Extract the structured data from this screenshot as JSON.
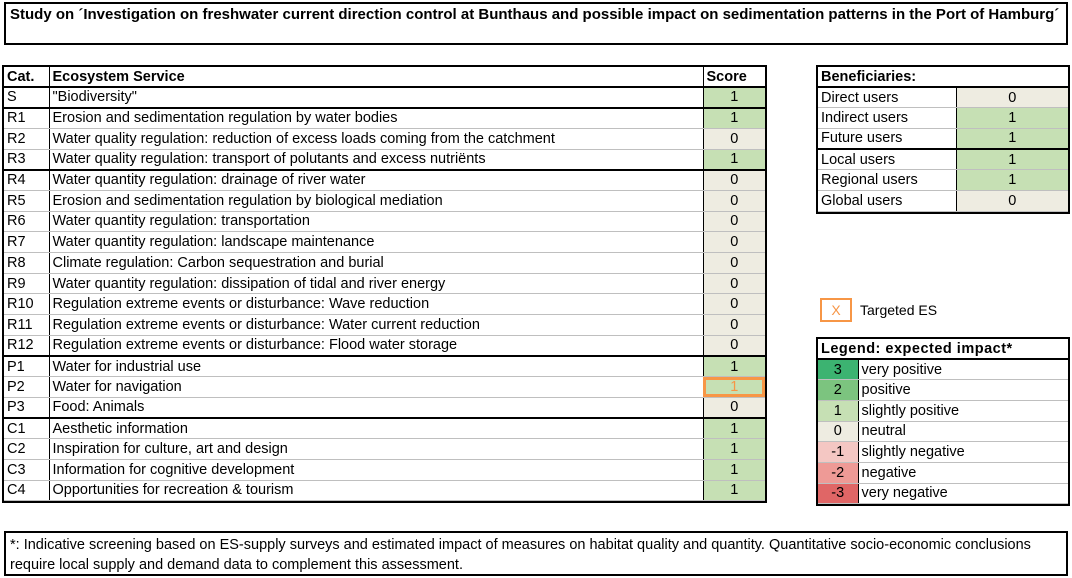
{
  "title": "Study on ´Investigation on freshwater current direction control at Bunthaus and possible impact on sedimentation patterns in the Port of Hamburg´",
  "es_table": {
    "headers": {
      "cat": "Cat.",
      "service": "Ecosystem Service",
      "score": "Score"
    },
    "rows": [
      {
        "cat": "S",
        "service": "\"Biodiversity\"",
        "score": "1"
      },
      {
        "cat": "R1",
        "service": "Erosion and sedimentation regulation by water bodies",
        "score": "1"
      },
      {
        "cat": "R2",
        "service": "Water quality regulation: reduction of excess loads coming from the catchment",
        "score": "0"
      },
      {
        "cat": "R3",
        "service": "Water quality regulation: transport of polutants and excess nutriënts",
        "score": "1"
      },
      {
        "cat": "R4",
        "service": "Water quantity regulation: drainage of river water",
        "score": "0"
      },
      {
        "cat": "R5",
        "service": "Erosion and sedimentation regulation by biological mediation",
        "score": "0"
      },
      {
        "cat": "R6",
        "service": "Water quantity regulation: transportation",
        "score": "0"
      },
      {
        "cat": "R7",
        "service": "Water quantity regulation: landscape maintenance",
        "score": "0"
      },
      {
        "cat": "R8",
        "service": "Climate regulation: Carbon sequestration and burial",
        "score": "0"
      },
      {
        "cat": "R9",
        "service": "Water quantity regulation: dissipation of tidal and river energy",
        "score": "0"
      },
      {
        "cat": "R10",
        "service": "Regulation extreme events or disturbance: Wave reduction",
        "score": "0"
      },
      {
        "cat": "R11",
        "service": "Regulation extreme events or disturbance: Water current reduction",
        "score": "0"
      },
      {
        "cat": "R12",
        "service": "Regulation extreme events or disturbance: Flood water storage",
        "score": "0"
      },
      {
        "cat": "P1",
        "service": "Water for industrial use",
        "score": "1"
      },
      {
        "cat": "P2",
        "service": "Water for navigation",
        "score": "1"
      },
      {
        "cat": "P3",
        "service": "Food: Animals",
        "score": "0"
      },
      {
        "cat": "C1",
        "service": "Aesthetic information",
        "score": "1"
      },
      {
        "cat": "C2",
        "service": "Inspiration for culture, art and design",
        "score": "1"
      },
      {
        "cat": "C3",
        "service": "Information for cognitive development",
        "score": "1"
      },
      {
        "cat": "C4",
        "service": "Opportunities for recreation & tourism",
        "score": "1"
      }
    ]
  },
  "beneficiaries": {
    "header": "Beneficiaries:",
    "rows": [
      {
        "label": "Direct users",
        "value": "0"
      },
      {
        "label": "Indirect users",
        "value": "1"
      },
      {
        "label": "Future users",
        "value": "1"
      },
      {
        "label": "Local users",
        "value": "1"
      },
      {
        "label": "Regional users",
        "value": "1"
      },
      {
        "label": "Global users",
        "value": "0"
      }
    ]
  },
  "targeted": {
    "key": "X",
    "label": "Targeted ES"
  },
  "legend": {
    "header": "Legend: expected impact*",
    "rows": [
      {
        "value": "3",
        "label": "very positive",
        "color": "#3cb371"
      },
      {
        "value": "2",
        "label": "positive",
        "color": "#7cc47f"
      },
      {
        "value": "1",
        "label": "slightly positive",
        "color": "#c6e0b4"
      },
      {
        "value": "0",
        "label": "neutral",
        "color": "#eeece1"
      },
      {
        "value": "-1",
        "label": "slightly negative",
        "color": "#f4c7c3"
      },
      {
        "value": "-2",
        "label": "negative",
        "color": "#ee9a96"
      },
      {
        "value": "-3",
        "label": "very negative",
        "color": "#e06666"
      }
    ]
  },
  "note": "*: Indicative screening based on ES-supply surveys and estimated impact of measures on habitat quality and quantity. Quantitative socio-economic conclusions require local supply and demand data to complement this assessment.",
  "colors": {
    "score_positive": "#c6e0b4",
    "score_neutral": "#eeece1",
    "targeted_accent": "#f79646"
  }
}
